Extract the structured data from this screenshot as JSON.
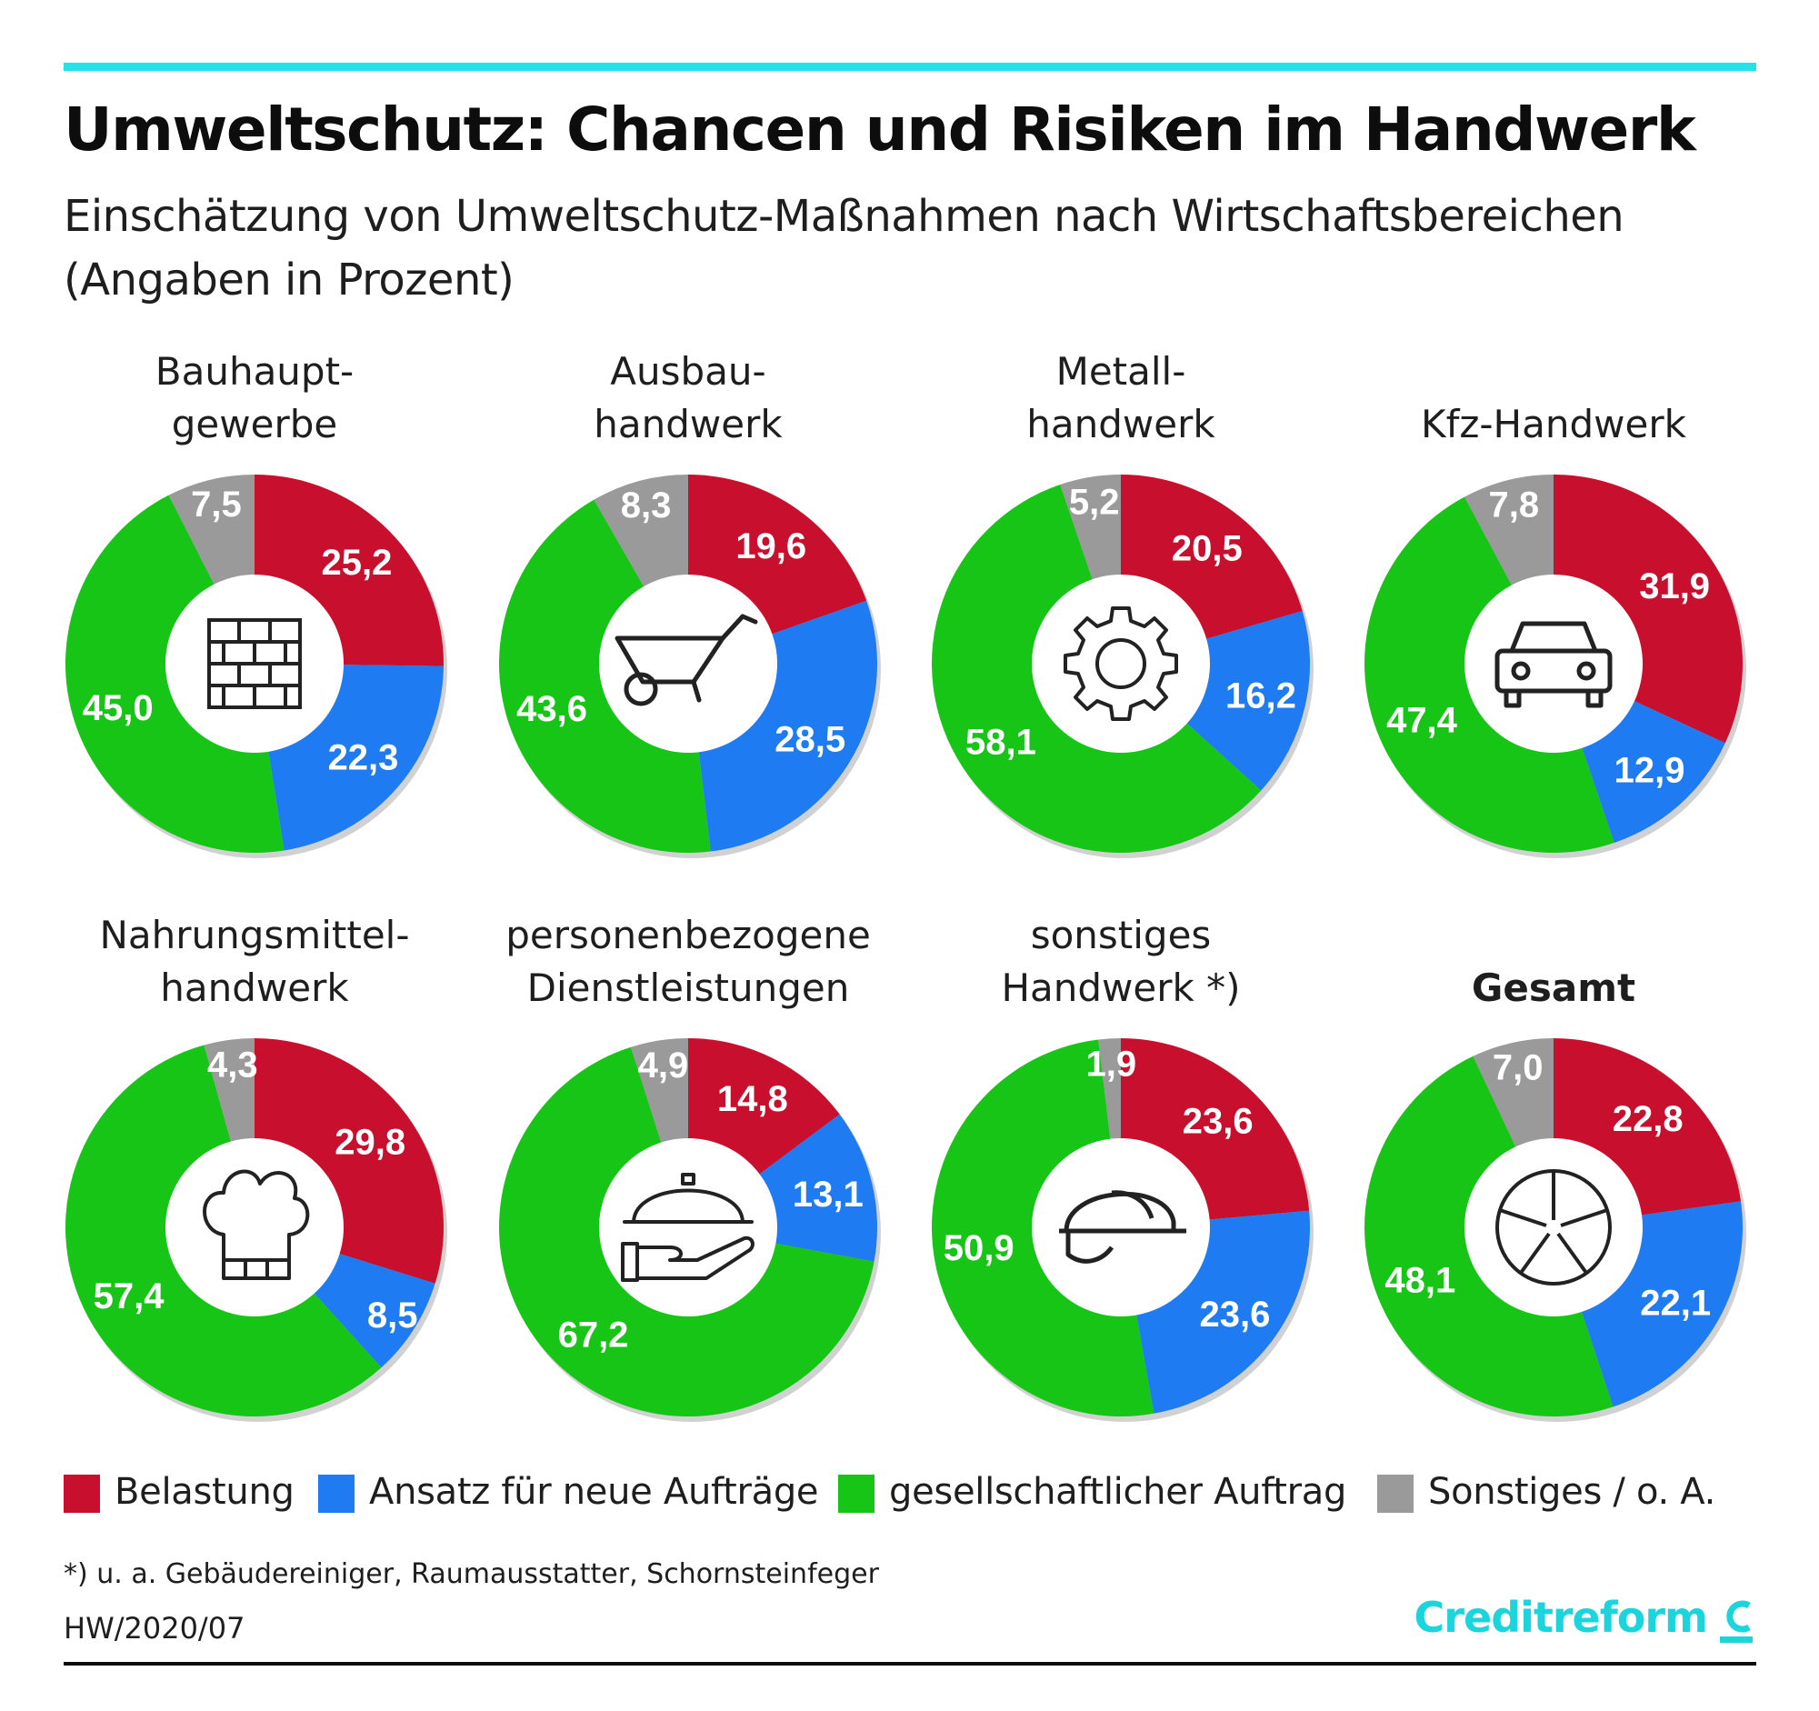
{
  "header": {
    "title": "Umweltschutz: Chancen und Risiken im Handwerk",
    "subtitle_line1": "Einschätzung von Umweltschutz-Maßnahmen nach Wirtschaftsbereichen",
    "subtitle_line2": "(Angaben in Prozent)"
  },
  "colors": {
    "belastung": "#c8102e",
    "ansatz": "#1e7bf2",
    "gesellschaftlich": "#16c516",
    "sonstiges": "#9a9a9a",
    "accent": "#22e3ea"
  },
  "chart_data": [
    {
      "type": "pie",
      "title": "Bauhaupt-gewerbe",
      "title_lines": [
        "Bauhaupt-",
        "gewerbe"
      ],
      "icon": "brick-wall-icon",
      "categories": [
        "Belastung",
        "Ansatz für neue Aufträge",
        "gesellschaftlicher Auftrag",
        "Sonstiges / o. A."
      ],
      "values": [
        25.2,
        22.3,
        45.0,
        7.5
      ],
      "labels": [
        "25,2",
        "22,3",
        "45,0",
        "7,5"
      ]
    },
    {
      "type": "pie",
      "title": "Ausbau-handwerk",
      "title_lines": [
        "Ausbau-",
        "handwerk"
      ],
      "icon": "wheelbarrow-icon",
      "categories": [
        "Belastung",
        "Ansatz für neue Aufträge",
        "gesellschaftlicher Auftrag",
        "Sonstiges / o. A."
      ],
      "values": [
        19.6,
        28.5,
        43.6,
        8.3
      ],
      "labels": [
        "19,6",
        "28,5",
        "43,6",
        "8,3"
      ]
    },
    {
      "type": "pie",
      "title": "Metall-handwerk",
      "title_lines": [
        "Metall-",
        "handwerk"
      ],
      "icon": "gear-icon",
      "categories": [
        "Belastung",
        "Ansatz für neue Aufträge",
        "gesellschaftlicher Auftrag",
        "Sonstiges / o. A."
      ],
      "values": [
        20.5,
        16.2,
        58.1,
        5.2
      ],
      "labels": [
        "20,5",
        "16,2",
        "58,1",
        "5,2"
      ]
    },
    {
      "type": "pie",
      "title": "Kfz-Handwerk",
      "title_lines": [
        "",
        "Kfz-Handwerk"
      ],
      "icon": "car-icon",
      "categories": [
        "Belastung",
        "Ansatz für neue Aufträge",
        "gesellschaftlicher Auftrag",
        "Sonstiges / o. A."
      ],
      "values": [
        31.9,
        12.9,
        47.4,
        7.8
      ],
      "labels": [
        "31,9",
        "12,9",
        "47,4",
        "7,8"
      ]
    },
    {
      "type": "pie",
      "title": "Nahrungsmittel-handwerk",
      "title_lines": [
        "Nahrungsmittel-",
        "handwerk"
      ],
      "icon": "chef-hat-icon",
      "categories": [
        "Belastung",
        "Ansatz für neue Aufträge",
        "gesellschaftlicher Auftrag",
        "Sonstiges / o. A."
      ],
      "values": [
        29.8,
        8.5,
        57.4,
        4.3
      ],
      "labels": [
        "29,8",
        "8,5",
        "57,4",
        "4,3"
      ]
    },
    {
      "type": "pie",
      "title": "personenbezogene Dienstleistungen",
      "title_lines": [
        "personenbezogene",
        "Dienstleistungen"
      ],
      "icon": "serving-cloche-icon",
      "categories": [
        "Belastung",
        "Ansatz für neue Aufträge",
        "gesellschaftlicher Auftrag",
        "Sonstiges / o. A."
      ],
      "values": [
        14.8,
        13.1,
        67.2,
        4.9
      ],
      "labels": [
        "14,8",
        "13,1",
        "67,2",
        "4,9"
      ]
    },
    {
      "type": "pie",
      "title": "sonstiges Handwerk *)",
      "title_lines": [
        "sonstiges",
        "Handwerk *)"
      ],
      "icon": "hard-hat-icon",
      "categories": [
        "Belastung",
        "Ansatz für neue Aufträge",
        "gesellschaftlicher Auftrag",
        "Sonstiges / o. A."
      ],
      "values": [
        23.6,
        23.6,
        50.9,
        1.9
      ],
      "labels": [
        "23,6",
        "23,6",
        "50,9",
        "1,9"
      ]
    },
    {
      "type": "pie",
      "title": "Gesamt",
      "title_lines": [
        "",
        "Gesamt"
      ],
      "icon": "pie-slices-icon",
      "categories": [
        "Belastung",
        "Ansatz für neue Aufträge",
        "gesellschaftlicher Auftrag",
        "Sonstiges / o. A."
      ],
      "values": [
        22.8,
        22.1,
        48.1,
        7.0
      ],
      "labels": [
        "22,8",
        "22,1",
        "48,1",
        "7,0"
      ]
    }
  ],
  "legend": [
    {
      "label": "Belastung",
      "color": "#c8102e"
    },
    {
      "label": "Ansatz für neue Aufträge",
      "color": "#1e7bf2"
    },
    {
      "label": "gesellschaftlicher Auftrag",
      "color": "#16c516"
    },
    {
      "label": "Sonstiges / o. A.",
      "color": "#9a9a9a"
    }
  ],
  "footer": {
    "footnote": "*) u. a. Gebäudereiniger, Raumausstatter, Schornsteinfeger",
    "source_code": "HW/2020/07",
    "logo_text": "Creditreform"
  }
}
